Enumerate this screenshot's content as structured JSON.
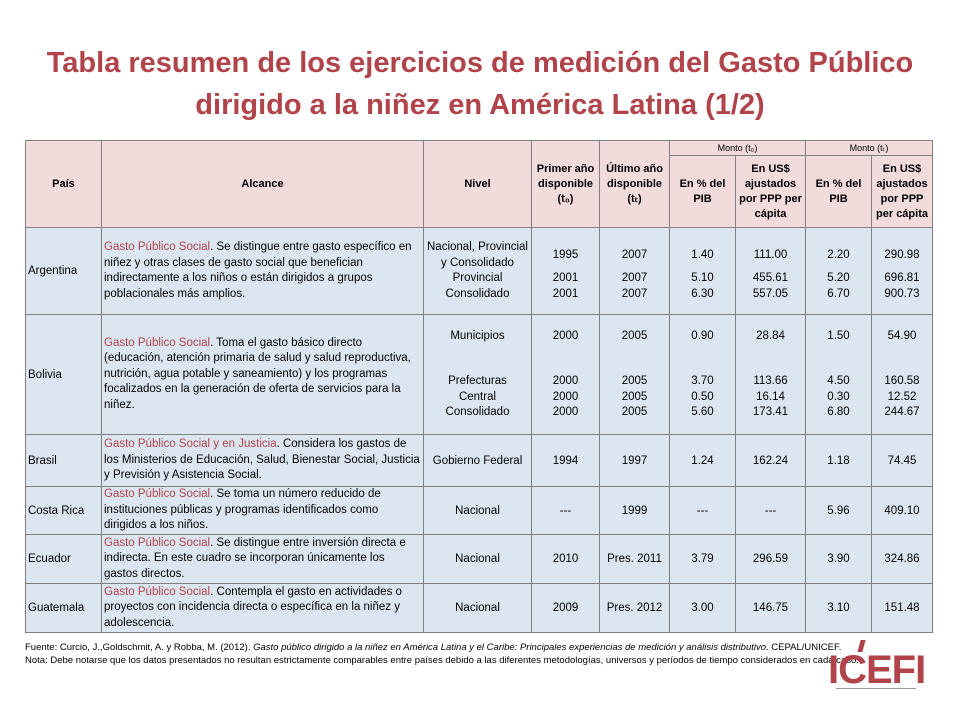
{
  "title": "Tabla resumen de los ejercicios de medición del Gasto Público dirigido a la niñez en América Latina (1/2)",
  "header": {
    "pais": "País",
    "alcance": "Alcance",
    "nivel": "Nivel",
    "primer": "Primer año disponible (t₀)",
    "ultimo": "Último año disponible (tₜ)",
    "monto_t0": "Monto (t₀)",
    "monto_tt": "Monto (tₜ)",
    "pct_pib": "En % del PIB",
    "usd": "En US$ ajustados por PPP per cápita"
  },
  "rows": {
    "argentina": {
      "country": "Argentina",
      "kw": "Gasto Público Social",
      "desc": ".  Se distingue entre gasto específico en niñez y otras clases de gasto social que benefician indirectamente a los niños o están dirigidos a grupos poblacionales más amplios.",
      "lines": [
        {
          "nivel": "Nacional, Provincial y Consolidado",
          "primer": "1995",
          "ultimo": "2007",
          "pib0": "1.40",
          "usd0": "111.00",
          "pibt": "2.20",
          "usdt": "290.98"
        },
        {
          "nivel": "Provincial",
          "primer": "2001",
          "ultimo": "2007",
          "pib0": "5.10",
          "usd0": "455.61",
          "pibt": "5.20",
          "usdt": "696.81"
        },
        {
          "nivel": "Consolidado",
          "primer": "2001",
          "ultimo": "2007",
          "pib0": "6.30",
          "usd0": "557.05",
          "pibt": "6.70",
          "usdt": "900.73"
        }
      ]
    },
    "bolivia": {
      "country": "Bolivia",
      "kw": "Gasto Público Social",
      "desc": ".  Toma el gasto básico directo (educación, atención primaria de salud y salud reproductiva, nutrición, agua potable y saneamiento) y los programas focalizados en la generación de oferta de servicios para la niñez.",
      "lines": [
        {
          "nivel": "Municipios",
          "primer": "2000",
          "ultimo": "2005",
          "pib0": "0.90",
          "usd0": "28.84",
          "pibt": "1.50",
          "usdt": "54.90"
        },
        {
          "nivel": "Prefecturas",
          "primer": "2000",
          "ultimo": "2005",
          "pib0": "3.70",
          "usd0": "113.66",
          "pibt": "4.50",
          "usdt": "160.58"
        },
        {
          "nivel": "Central",
          "primer": "2000",
          "ultimo": "2005",
          "pib0": "0.50",
          "usd0": "16.14",
          "pibt": "0.30",
          "usdt": "12.52"
        },
        {
          "nivel": "Consolidado",
          "primer": "2000",
          "ultimo": "2005",
          "pib0": "5.60",
          "usd0": "173.41",
          "pibt": "6.80",
          "usdt": "244.67"
        }
      ]
    },
    "brasil": {
      "country": "Brasil",
      "kw": "Gasto Público Social y en Justicia",
      "desc": ".  Considera los gastos de los Ministerios de Educación, Salud, Bienestar Social, Justicia y Previsión y Asistencia Social.",
      "nivel": "Gobierno Federal",
      "primer": "1994",
      "ultimo": "1997",
      "pib0": "1.24",
      "usd0": "162.24",
      "pibt": "1.18",
      "usdt": "74.45"
    },
    "costarica": {
      "country": "Costa Rica",
      "kw": "Gasto Público Social",
      "desc": ".  Se toma un número reducido de instituciones públicas y programas identificados como dirigidos a los niños.",
      "nivel": "Nacional",
      "primer": "---",
      "ultimo": "1999",
      "pib0": "---",
      "usd0": "---",
      "pibt": "5.96",
      "usdt": "409.10"
    },
    "ecuador": {
      "country": "Ecuador",
      "kw": "Gasto Público Social",
      "desc": ". Se distingue entre inversión directa e indirecta. En este cuadro se incorporan únicamente los gastos directos.",
      "nivel": "Nacional",
      "primer": "2010",
      "ultimo": "Pres. 2011",
      "pib0": "3.79",
      "usd0": "296.59",
      "pibt": "3.90",
      "usdt": "324.86"
    },
    "guatemala": {
      "country": "Guatemala",
      "kw": "Gasto Público Social",
      "desc": ". Contempla el gasto en actividades o proyectos con incidencia directa o específica en la niñez y adolescencia.",
      "nivel": "Nacional",
      "primer": "2009",
      "ultimo": "Pres. 2012",
      "pib0": "3.00",
      "usd0": "146.75",
      "pibt": "3.10",
      "usdt": "151.48"
    }
  },
  "footer": {
    "fuente_pre": "Fuente: Curcio, J.,Goldschmit, A. y Robba, M. (2012). ",
    "fuente_it": "Gasto público dirigido a la niñez en América Latina y el Caribe: Principales experiencias de medición y análisis distributivo",
    "fuente_post": ". CEPAL/UNICEF.",
    "nota": "Nota: Debe notarse que los datos presentados no resultan estrictamente comparables entre países debido a las diferentes metodologías, universos y períodos de tiempo considerados en cada caso."
  },
  "logo": {
    "text": "ICEFI",
    "color": "#b1434a"
  }
}
